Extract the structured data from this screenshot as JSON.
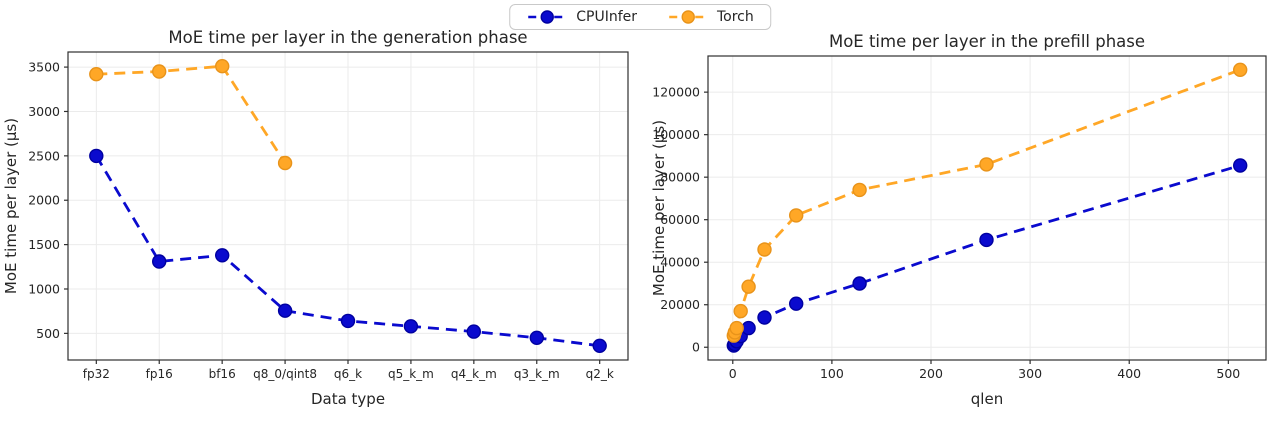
{
  "figure": {
    "background": "#ffffff"
  },
  "legend": {
    "items": [
      {
        "name": "CPUInfer",
        "color": "#0a0ace",
        "edge": "#0000a0"
      },
      {
        "name": "Torch",
        "color": "#ffa726",
        "edge": "#e8931a"
      }
    ]
  },
  "chart_data": [
    {
      "type": "line",
      "title": "MoE time per layer in the generation phase",
      "xlabel": "Data type",
      "ylabel": "MoE time per layer (µs)",
      "categories": [
        "fp32",
        "fp16",
        "bf16",
        "q8_0/qint8",
        "q6_k",
        "q5_k_m",
        "q4_k_m",
        "q3_k_m",
        "q2_k"
      ],
      "yticks": [
        500,
        1000,
        1500,
        2000,
        2500,
        3000,
        3500
      ],
      "ylim": [
        200,
        3670
      ],
      "grid": true,
      "legend_position": "top-center-figure",
      "line_style": "dashed",
      "series": [
        {
          "name": "CPUInfer",
          "color": "#0a0ace",
          "edge": "#0000a0",
          "values": [
            2500,
            1310,
            1380,
            755,
            640,
            580,
            520,
            450,
            360
          ]
        },
        {
          "name": "Torch",
          "color": "#ffa726",
          "edge": "#e8931a",
          "values": [
            3420,
            3450,
            3510,
            2420,
            null,
            null,
            null,
            null,
            null
          ]
        }
      ]
    },
    {
      "type": "line",
      "title": "MoE time per layer in the prefill phase",
      "xlabel": "qlen",
      "ylabel": "MoE time per layer (µs)",
      "x": [
        1,
        2,
        4,
        8,
        16,
        32,
        64,
        128,
        256,
        512
      ],
      "xticks": [
        0,
        100,
        200,
        300,
        400,
        500
      ],
      "xlim": [
        -25,
        538
      ],
      "yticks": [
        0,
        20000,
        40000,
        60000,
        80000,
        100000,
        120000
      ],
      "ylim": [
        -6000,
        137000
      ],
      "grid": true,
      "line_style": "dashed",
      "series": [
        {
          "name": "CPUInfer",
          "color": "#0a0ace",
          "edge": "#0000a0",
          "values": [
            800,
            1500,
            2800,
            5200,
            9000,
            14000,
            20500,
            30000,
            50500,
            85500
          ]
        },
        {
          "name": "Torch",
          "color": "#ffa726",
          "edge": "#e8931a",
          "values": [
            5500,
            7000,
            9000,
            17000,
            28500,
            46000,
            62000,
            74000,
            86000,
            130500
          ]
        }
      ]
    }
  ]
}
